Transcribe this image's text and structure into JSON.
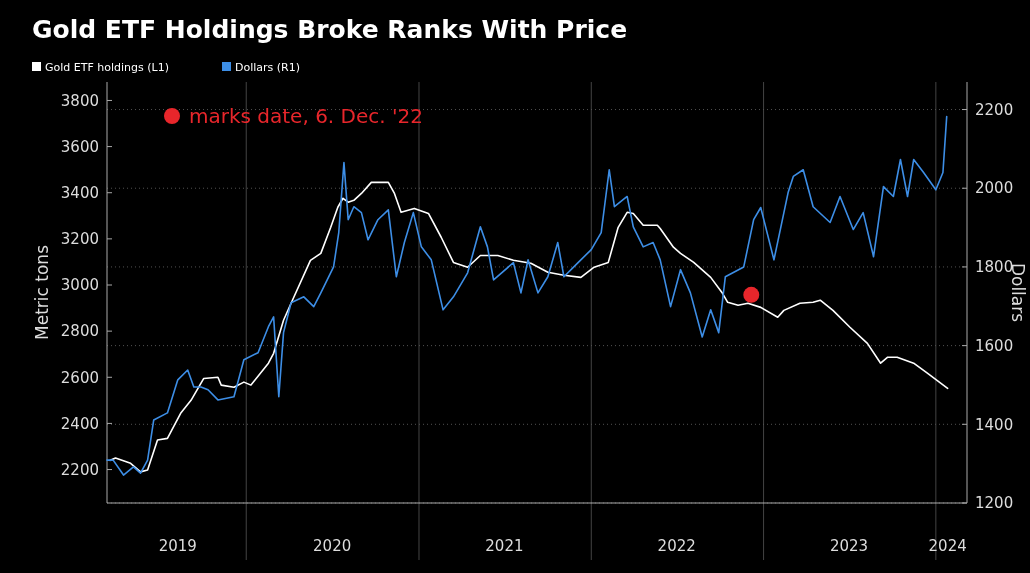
{
  "chart_data": {
    "type": "line",
    "title": "Gold ETF Holdings Broke Ranks With Price",
    "ylabel": "Metric tons",
    "y2label": "Dollars",
    "legend": "top left",
    "grid": true,
    "marker": "none",
    "line_style": "solid",
    "xlim": [
      "2019-03-12",
      "2024-03-07"
    ],
    "xticks": [
      {
        "value": "2019-08-09",
        "label": "2019"
      },
      {
        "value": "2020-01-01",
        "label": null
      },
      {
        "value": "2020-07-01",
        "label": "2020"
      },
      {
        "value": "2021-01-01",
        "label": null
      },
      {
        "value": "2021-07-01",
        "label": "2021"
      },
      {
        "value": "2022-01-01",
        "label": null
      },
      {
        "value": "2022-07-01",
        "label": "2022"
      },
      {
        "value": "2023-01-01",
        "label": null
      },
      {
        "value": "2023-07-01",
        "label": "2023"
      },
      {
        "value": "2024-01-01",
        "label": null
      },
      {
        "value": "2024-01-26",
        "label": "2024"
      }
    ],
    "ylim": [
      2055,
      3880
    ],
    "yticks": [
      2200,
      2400,
      2600,
      2800,
      3000,
      3200,
      3400,
      3600,
      3800
    ],
    "y2lim": [
      1200,
      2270
    ],
    "y2ticks": [
      1200,
      1400,
      1600,
      1800,
      2000,
      2200
    ],
    "series": [
      {
        "name": "Gold ETF holdings (L1)",
        "color": "#ffffff",
        "x": [
          "2019-03-19",
          "2019-03-30",
          "2019-05-01",
          "2019-05-22",
          "2019-06-06",
          "2019-06-27",
          "2019-07-18",
          "2019-08-15",
          "2019-09-06",
          "2019-10-03",
          "2019-11-02",
          "2019-11-09",
          "2019-12-06",
          "2019-12-27",
          "2020-01-11",
          "2020-02-17",
          "2020-02-28",
          "2020-03-20",
          "2020-04-05",
          "2020-05-16",
          "2020-06-07",
          "2020-06-28",
          "2020-07-13",
          "2020-07-24",
          "2020-08-04",
          "2020-08-16",
          "2020-09-01",
          "2020-09-22",
          "2020-10-28",
          "2020-11-10",
          "2020-11-24",
          "2020-12-22",
          "2021-01-21",
          "2021-02-17",
          "2021-03-15",
          "2021-04-14",
          "2021-05-11",
          "2021-06-17",
          "2021-07-20",
          "2021-08-26",
          "2021-10-01",
          "2021-11-04",
          "2021-12-10",
          "2022-01-07",
          "2022-02-06",
          "2022-02-27",
          "2022-03-18",
          "2022-03-31",
          "2022-04-21",
          "2022-05-21",
          "2022-05-27",
          "2022-06-24",
          "2022-07-09",
          "2022-08-06",
          "2022-09-11",
          "2022-10-06",
          "2022-10-17",
          "2022-11-08",
          "2022-11-29",
          "2022-12-26",
          "2023-01-31",
          "2023-02-13",
          "2023-03-19",
          "2023-04-16",
          "2023-05-01",
          "2023-05-28",
          "2023-07-03",
          "2023-08-09",
          "2023-09-06",
          "2023-09-21",
          "2023-10-11",
          "2023-11-15",
          "2023-12-14",
          "2024-01-26"
        ],
        "values": [
          2240,
          2250,
          2227,
          2190,
          2198,
          2328,
          2335,
          2444,
          2500,
          2595,
          2600,
          2566,
          2557,
          2579,
          2566,
          2661,
          2704,
          2847,
          2921,
          3107,
          3137,
          3250,
          3337,
          3376,
          3359,
          3367,
          3397,
          3445,
          3445,
          3397,
          3315,
          3332,
          3310,
          3207,
          3098,
          3077,
          3128,
          3128,
          3107,
          3094,
          3055,
          3042,
          3033,
          3077,
          3098,
          3250,
          3315,
          3310,
          3259,
          3259,
          3245,
          3164,
          3137,
          3098,
          3033,
          2964,
          2925,
          2912,
          2921,
          2903,
          2860,
          2890,
          2921,
          2925,
          2934,
          2890,
          2817,
          2747,
          2661,
          2687,
          2687,
          2661,
          2618,
          2552
        ]
      },
      {
        "name": "Dollars (R1)",
        "color": "#3d8ee6",
        "axis": "y2",
        "x": [
          "2019-03-12",
          "2019-03-25",
          "2019-04-16",
          "2019-05-07",
          "2019-05-22",
          "2019-06-06",
          "2019-06-19",
          "2019-07-18",
          "2019-08-09",
          "2019-08-30",
          "2019-09-12",
          "2019-09-27",
          "2019-10-12",
          "2019-11-02",
          "2019-12-06",
          "2019-12-27",
          "2020-01-26",
          "2020-02-17",
          "2020-02-28",
          "2020-03-10",
          "2020-03-20",
          "2020-04-05",
          "2020-05-02",
          "2020-05-23",
          "2020-06-07",
          "2020-07-04",
          "2020-07-15",
          "2020-07-26",
          "2020-08-04",
          "2020-08-16",
          "2020-09-01",
          "2020-09-15",
          "2020-10-06",
          "2020-10-28",
          "2020-11-14",
          "2020-12-01",
          "2020-12-20",
          "2021-01-06",
          "2021-01-27",
          "2021-02-21",
          "2021-03-15",
          "2021-04-14",
          "2021-05-11",
          "2021-05-26",
          "2021-06-08",
          "2021-07-20",
          "2021-08-05",
          "2021-08-20",
          "2021-09-10",
          "2021-10-01",
          "2021-10-22",
          "2021-11-04",
          "2021-12-04",
          "2022-01-01",
          "2022-01-22",
          "2022-02-08",
          "2022-02-19",
          "2022-03-18",
          "2022-03-31",
          "2022-04-21",
          "2022-05-12",
          "2022-05-27",
          "2022-06-18",
          "2022-07-09",
          "2022-07-30",
          "2022-08-24",
          "2022-09-11",
          "2022-09-28",
          "2022-10-12",
          "2022-11-20",
          "2022-12-11",
          "2022-12-26",
          "2023-01-23",
          "2023-02-22",
          "2023-03-05",
          "2023-03-26",
          "2023-04-16",
          "2023-05-22",
          "2023-06-12",
          "2023-07-10",
          "2023-07-31",
          "2023-08-22",
          "2023-09-12",
          "2023-10-03",
          "2023-10-18",
          "2023-11-02",
          "2023-11-15",
          "2023-12-06",
          "2024-01-01",
          "2024-01-16",
          "2024-01-24"
        ],
        "values": [
          1309,
          1309,
          1271,
          1292,
          1276,
          1309,
          1411,
          1429,
          1513,
          1538,
          1495,
          1495,
          1488,
          1462,
          1470,
          1564,
          1582,
          1648,
          1673,
          1470,
          1633,
          1709,
          1724,
          1699,
          1734,
          1800,
          1887,
          2065,
          1920,
          1953,
          1938,
          1869,
          1920,
          1945,
          1775,
          1862,
          1938,
          1851,
          1818,
          1691,
          1724,
          1785,
          1902,
          1851,
          1767,
          1811,
          1734,
          1818,
          1734,
          1775,
          1862,
          1775,
          1811,
          1844,
          1887,
          2047,
          1953,
          1979,
          1902,
          1851,
          1862,
          1818,
          1699,
          1793,
          1734,
          1622,
          1691,
          1633,
          1775,
          1800,
          1920,
          1951,
          1818,
          1989,
          2030,
          2047,
          1953,
          1913,
          1979,
          1895,
          1938,
          1826,
          2004,
          1979,
          2073,
          1979,
          2073,
          2040,
          1996,
          2040,
          2182
        ]
      },
      {
        "type": "scatter",
        "name": "marks date, 6. Dec. '22",
        "color": "#e8262b",
        "axis": "y2",
        "marker": "circle",
        "x": [
          "2022-12-06"
        ],
        "values": [
          1729
        ]
      }
    ]
  }
}
